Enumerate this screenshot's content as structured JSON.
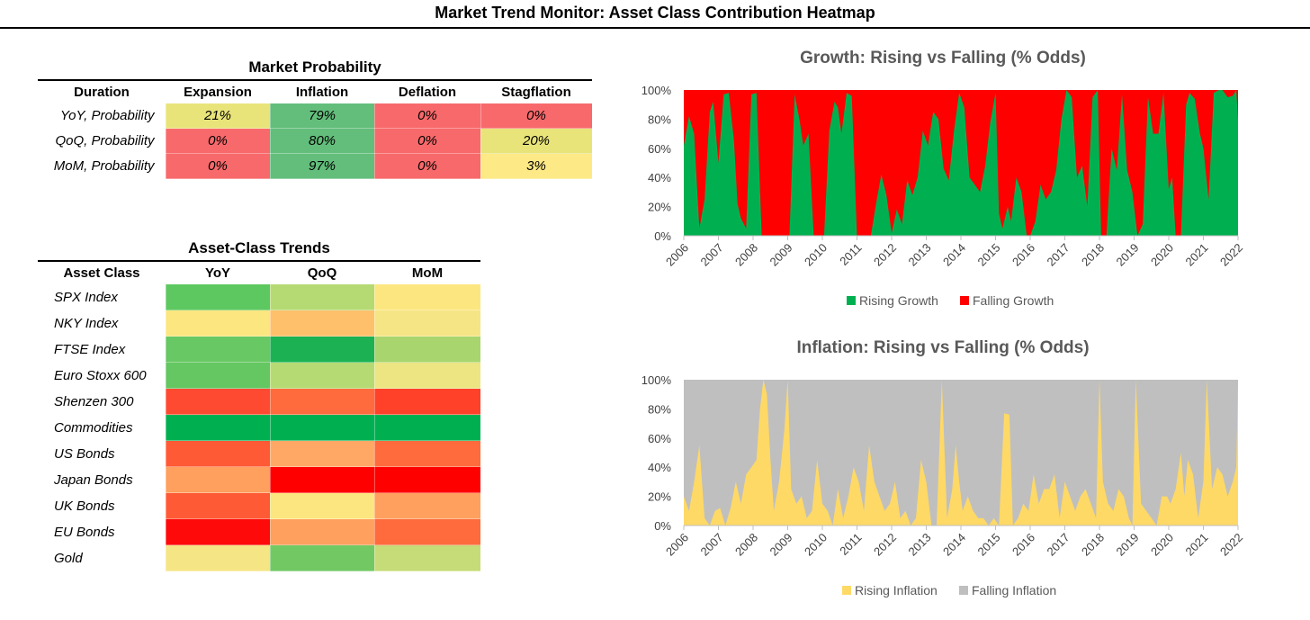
{
  "title": "Market Trend Monitor: Asset Class Contribution Heatmap",
  "colors": {
    "green": "#00B050",
    "red": "#FF0000",
    "yellow": "#FFD966",
    "grey": "#BFBFBF"
  },
  "probability": {
    "caption": "Market Probability",
    "headers": [
      "Duration",
      "Expansion",
      "Inflation",
      "Deflation",
      "Stagflation"
    ],
    "rows": [
      {
        "label": "YoY, Probability",
        "cells": [
          {
            "text": "21%",
            "color": "#E8E47A"
          },
          {
            "text": "79%",
            "color": "#63BE7B"
          },
          {
            "text": "0%",
            "color": "#F8696B"
          },
          {
            "text": "0%",
            "color": "#F8696B"
          }
        ]
      },
      {
        "label": "QoQ, Probability",
        "cells": [
          {
            "text": "0%",
            "color": "#F8696B"
          },
          {
            "text": "80%",
            "color": "#63BE7B"
          },
          {
            "text": "0%",
            "color": "#F8696B"
          },
          {
            "text": "20%",
            "color": "#E8E47A"
          }
        ]
      },
      {
        "label": "MoM, Probability",
        "cells": [
          {
            "text": "0%",
            "color": "#F8696B"
          },
          {
            "text": "97%",
            "color": "#63BE7B"
          },
          {
            "text": "0%",
            "color": "#F8696B"
          },
          {
            "text": "3%",
            "color": "#FDE985"
          }
        ]
      }
    ]
  },
  "trends": {
    "caption": "Asset-Class Trends",
    "headers": [
      "Asset Class",
      "YoY",
      "QoQ",
      "MoM"
    ],
    "rows": [
      {
        "label": "SPX Index",
        "colors": [
          "#5DC860",
          "#B5DA73",
          "#FCE680"
        ]
      },
      {
        "label": "NKY Index",
        "colors": [
          "#FCE680",
          "#FFC06C",
          "#F5E585"
        ]
      },
      {
        "label": "FTSE Index",
        "colors": [
          "#68C863",
          "#1CB254",
          "#A8D56E"
        ]
      },
      {
        "label": "Euro Stoxx 600",
        "colors": [
          "#64C762",
          "#B5DA73",
          "#ECE582"
        ]
      },
      {
        "label": "Shenzen 300",
        "colors": [
          "#FF4A32",
          "#FF6B3C",
          "#FF4129"
        ]
      },
      {
        "label": "Commodities",
        "colors": [
          "#00B050",
          "#00B050",
          "#00B050"
        ]
      },
      {
        "label": "US Bonds",
        "colors": [
          "#FF5A36",
          "#FFA865",
          "#FF6B3C"
        ]
      },
      {
        "label": "Japan Bonds",
        "colors": [
          "#FFA05E",
          "#FF0000",
          "#FF0000"
        ]
      },
      {
        "label": "UK Bonds",
        "colors": [
          "#FF5A36",
          "#FCE680",
          "#FFA05E"
        ]
      },
      {
        "label": "EU Bonds",
        "colors": [
          "#FF0A0A",
          "#FFA05E",
          "#FF6B3C"
        ]
      },
      {
        "label": "Gold",
        "colors": [
          "#F5E585",
          "#72C964",
          "#C6DC78"
        ]
      }
    ]
  },
  "chart_data": [
    {
      "type": "area",
      "title": "Growth: Rising vs Falling (% Odds)",
      "ylim": [
        0,
        100
      ],
      "yticks": [
        "0%",
        "20%",
        "40%",
        "60%",
        "80%",
        "100%"
      ],
      "xticks": [
        "2006",
        "2007",
        "2008",
        "2009",
        "2010",
        "2011",
        "2012",
        "2013",
        "2014",
        "2015",
        "2016",
        "2017",
        "2018",
        "2019",
        "2020",
        "2021",
        "2022"
      ],
      "stacked": true,
      "legend_position": "bottom",
      "series": [
        {
          "name": "Rising Growth",
          "color": "#00B050",
          "x": [
            2006.0,
            2006.15,
            2006.3,
            2006.45,
            2006.6,
            2006.75,
            2006.85,
            2007.0,
            2007.15,
            2007.3,
            2007.45,
            2007.55,
            2007.65,
            2007.8,
            2007.95,
            2008.1,
            2008.25,
            2008.4,
            2008.5,
            2008.6,
            2008.75,
            2008.9,
            2009.05,
            2009.2,
            2009.35,
            2009.45,
            2009.6,
            2009.75,
            2009.9,
            2010.05,
            2010.2,
            2010.35,
            2010.45,
            2010.55,
            2010.7,
            2010.85,
            2011.0,
            2011.1,
            2011.25,
            2011.4,
            2011.55,
            2011.7,
            2011.85,
            2012.0,
            2012.15,
            2012.3,
            2012.45,
            2012.6,
            2012.75,
            2012.9,
            2013.05,
            2013.2,
            2013.35,
            2013.5,
            2013.65,
            2013.8,
            2013.95,
            2014.1,
            2014.25,
            2014.4,
            2014.55,
            2014.7,
            2014.85,
            2015.0,
            2015.1,
            2015.2,
            2015.35,
            2015.45,
            2015.6,
            2015.75,
            2015.9,
            2016.0,
            2016.15,
            2016.3,
            2016.45,
            2016.6,
            2016.75,
            2016.9,
            2017.05,
            2017.2,
            2017.35,
            2017.5,
            2017.65,
            2017.8,
            2017.95,
            2018.05,
            2018.2,
            2018.35,
            2018.5,
            2018.65,
            2018.8,
            2018.95,
            2019.1,
            2019.25,
            2019.4,
            2019.55,
            2019.7,
            2019.85,
            2020.0,
            2020.1,
            2020.2,
            2020.35,
            2020.5,
            2020.6,
            2020.75,
            2020.9,
            2021.0,
            2021.15,
            2021.3,
            2021.45,
            2021.55,
            2021.7,
            2021.85,
            2021.95,
            2022.0
          ],
          "values": [
            62,
            82,
            70,
            5,
            25,
            85,
            92,
            50,
            97,
            98,
            65,
            22,
            12,
            5,
            97,
            98,
            0,
            0,
            0,
            0,
            0,
            0,
            0,
            97,
            78,
            62,
            70,
            0,
            0,
            0,
            72,
            92,
            88,
            70,
            98,
            96,
            0,
            0,
            0,
            0,
            22,
            42,
            28,
            2,
            18,
            8,
            38,
            28,
            40,
            72,
            62,
            85,
            80,
            46,
            38,
            72,
            98,
            88,
            40,
            35,
            30,
            48,
            78,
            98,
            15,
            5,
            20,
            10,
            40,
            30,
            0,
            0,
            10,
            35,
            25,
            30,
            45,
            80,
            100,
            95,
            40,
            48,
            20,
            95,
            100,
            0,
            0,
            60,
            45,
            97,
            45,
            30,
            0,
            8,
            95,
            70,
            70,
            98,
            32,
            40,
            0,
            0,
            90,
            98,
            94,
            70,
            60,
            25,
            98,
            100,
            100,
            95,
            96,
            100,
            80
          ]
        },
        {
          "name": "Falling Growth",
          "color": "#FF0000"
        }
      ]
    },
    {
      "type": "area",
      "title": "Inflation: Rising vs Falling  (% Odds)",
      "ylim": [
        0,
        100
      ],
      "yticks": [
        "0%",
        "20%",
        "40%",
        "60%",
        "80%",
        "100%"
      ],
      "xticks": [
        "2006",
        "2007",
        "2008",
        "2009",
        "2010",
        "2011",
        "2012",
        "2013",
        "2014",
        "2015",
        "2016",
        "2017",
        "2018",
        "2019",
        "2020",
        "2021",
        "2022"
      ],
      "stacked": true,
      "legend_position": "bottom",
      "series": [
        {
          "name": "Rising Inflation",
          "color": "#FFD966",
          "x": [
            2006.0,
            2006.15,
            2006.3,
            2006.45,
            2006.6,
            2006.75,
            2006.9,
            2007.05,
            2007.2,
            2007.35,
            2007.5,
            2007.65,
            2007.8,
            2007.95,
            2008.1,
            2008.2,
            2008.3,
            2008.4,
            2008.5,
            2008.6,
            2008.75,
            2008.9,
            2009.0,
            2009.1,
            2009.25,
            2009.4,
            2009.55,
            2009.7,
            2009.85,
            2010.0,
            2010.15,
            2010.3,
            2010.45,
            2010.6,
            2010.75,
            2010.9,
            2011.05,
            2011.2,
            2011.35,
            2011.5,
            2011.65,
            2011.8,
            2011.95,
            2012.1,
            2012.25,
            2012.4,
            2012.55,
            2012.7,
            2012.85,
            2013.0,
            2013.15,
            2013.3,
            2013.45,
            2013.6,
            2013.75,
            2013.85,
            2013.95,
            2014.05,
            2014.2,
            2014.35,
            2014.5,
            2014.65,
            2014.8,
            2014.95,
            2015.1,
            2015.25,
            2015.4,
            2015.5,
            2015.65,
            2015.8,
            2015.95,
            2016.1,
            2016.25,
            2016.4,
            2016.55,
            2016.7,
            2016.85,
            2017.0,
            2017.15,
            2017.3,
            2017.45,
            2017.6,
            2017.75,
            2017.9,
            2018.0,
            2018.1,
            2018.25,
            2018.4,
            2018.55,
            2018.7,
            2018.85,
            2018.95,
            2019.05,
            2019.2,
            2019.35,
            2019.5,
            2019.65,
            2019.8,
            2019.95,
            2020.05,
            2020.2,
            2020.35,
            2020.45,
            2020.55,
            2020.7,
            2020.85,
            2021.0,
            2021.1,
            2021.25,
            2021.4,
            2021.55,
            2021.7,
            2021.85,
            2021.95,
            2022.0
          ],
          "values": [
            20,
            10,
            30,
            55,
            5,
            0,
            10,
            12,
            0,
            12,
            30,
            15,
            35,
            40,
            45,
            80,
            100,
            90,
            45,
            10,
            30,
            65,
            100,
            25,
            15,
            20,
            5,
            10,
            45,
            15,
            10,
            0,
            25,
            5,
            20,
            40,
            30,
            10,
            55,
            30,
            20,
            10,
            15,
            30,
            5,
            10,
            0,
            5,
            45,
            30,
            0,
            0,
            100,
            5,
            25,
            55,
            30,
            10,
            20,
            10,
            5,
            5,
            0,
            5,
            0,
            77,
            76,
            0,
            5,
            15,
            10,
            35,
            15,
            25,
            25,
            35,
            5,
            30,
            20,
            10,
            20,
            25,
            15,
            5,
            100,
            30,
            15,
            10,
            25,
            20,
            5,
            0,
            100,
            15,
            10,
            5,
            0,
            20,
            20,
            15,
            25,
            50,
            20,
            45,
            35,
            5,
            30,
            100,
            25,
            40,
            35,
            20,
            30,
            40,
            98
          ]
        },
        {
          "name": "Falling Inflation",
          "color": "#BFBFBF"
        }
      ]
    }
  ]
}
